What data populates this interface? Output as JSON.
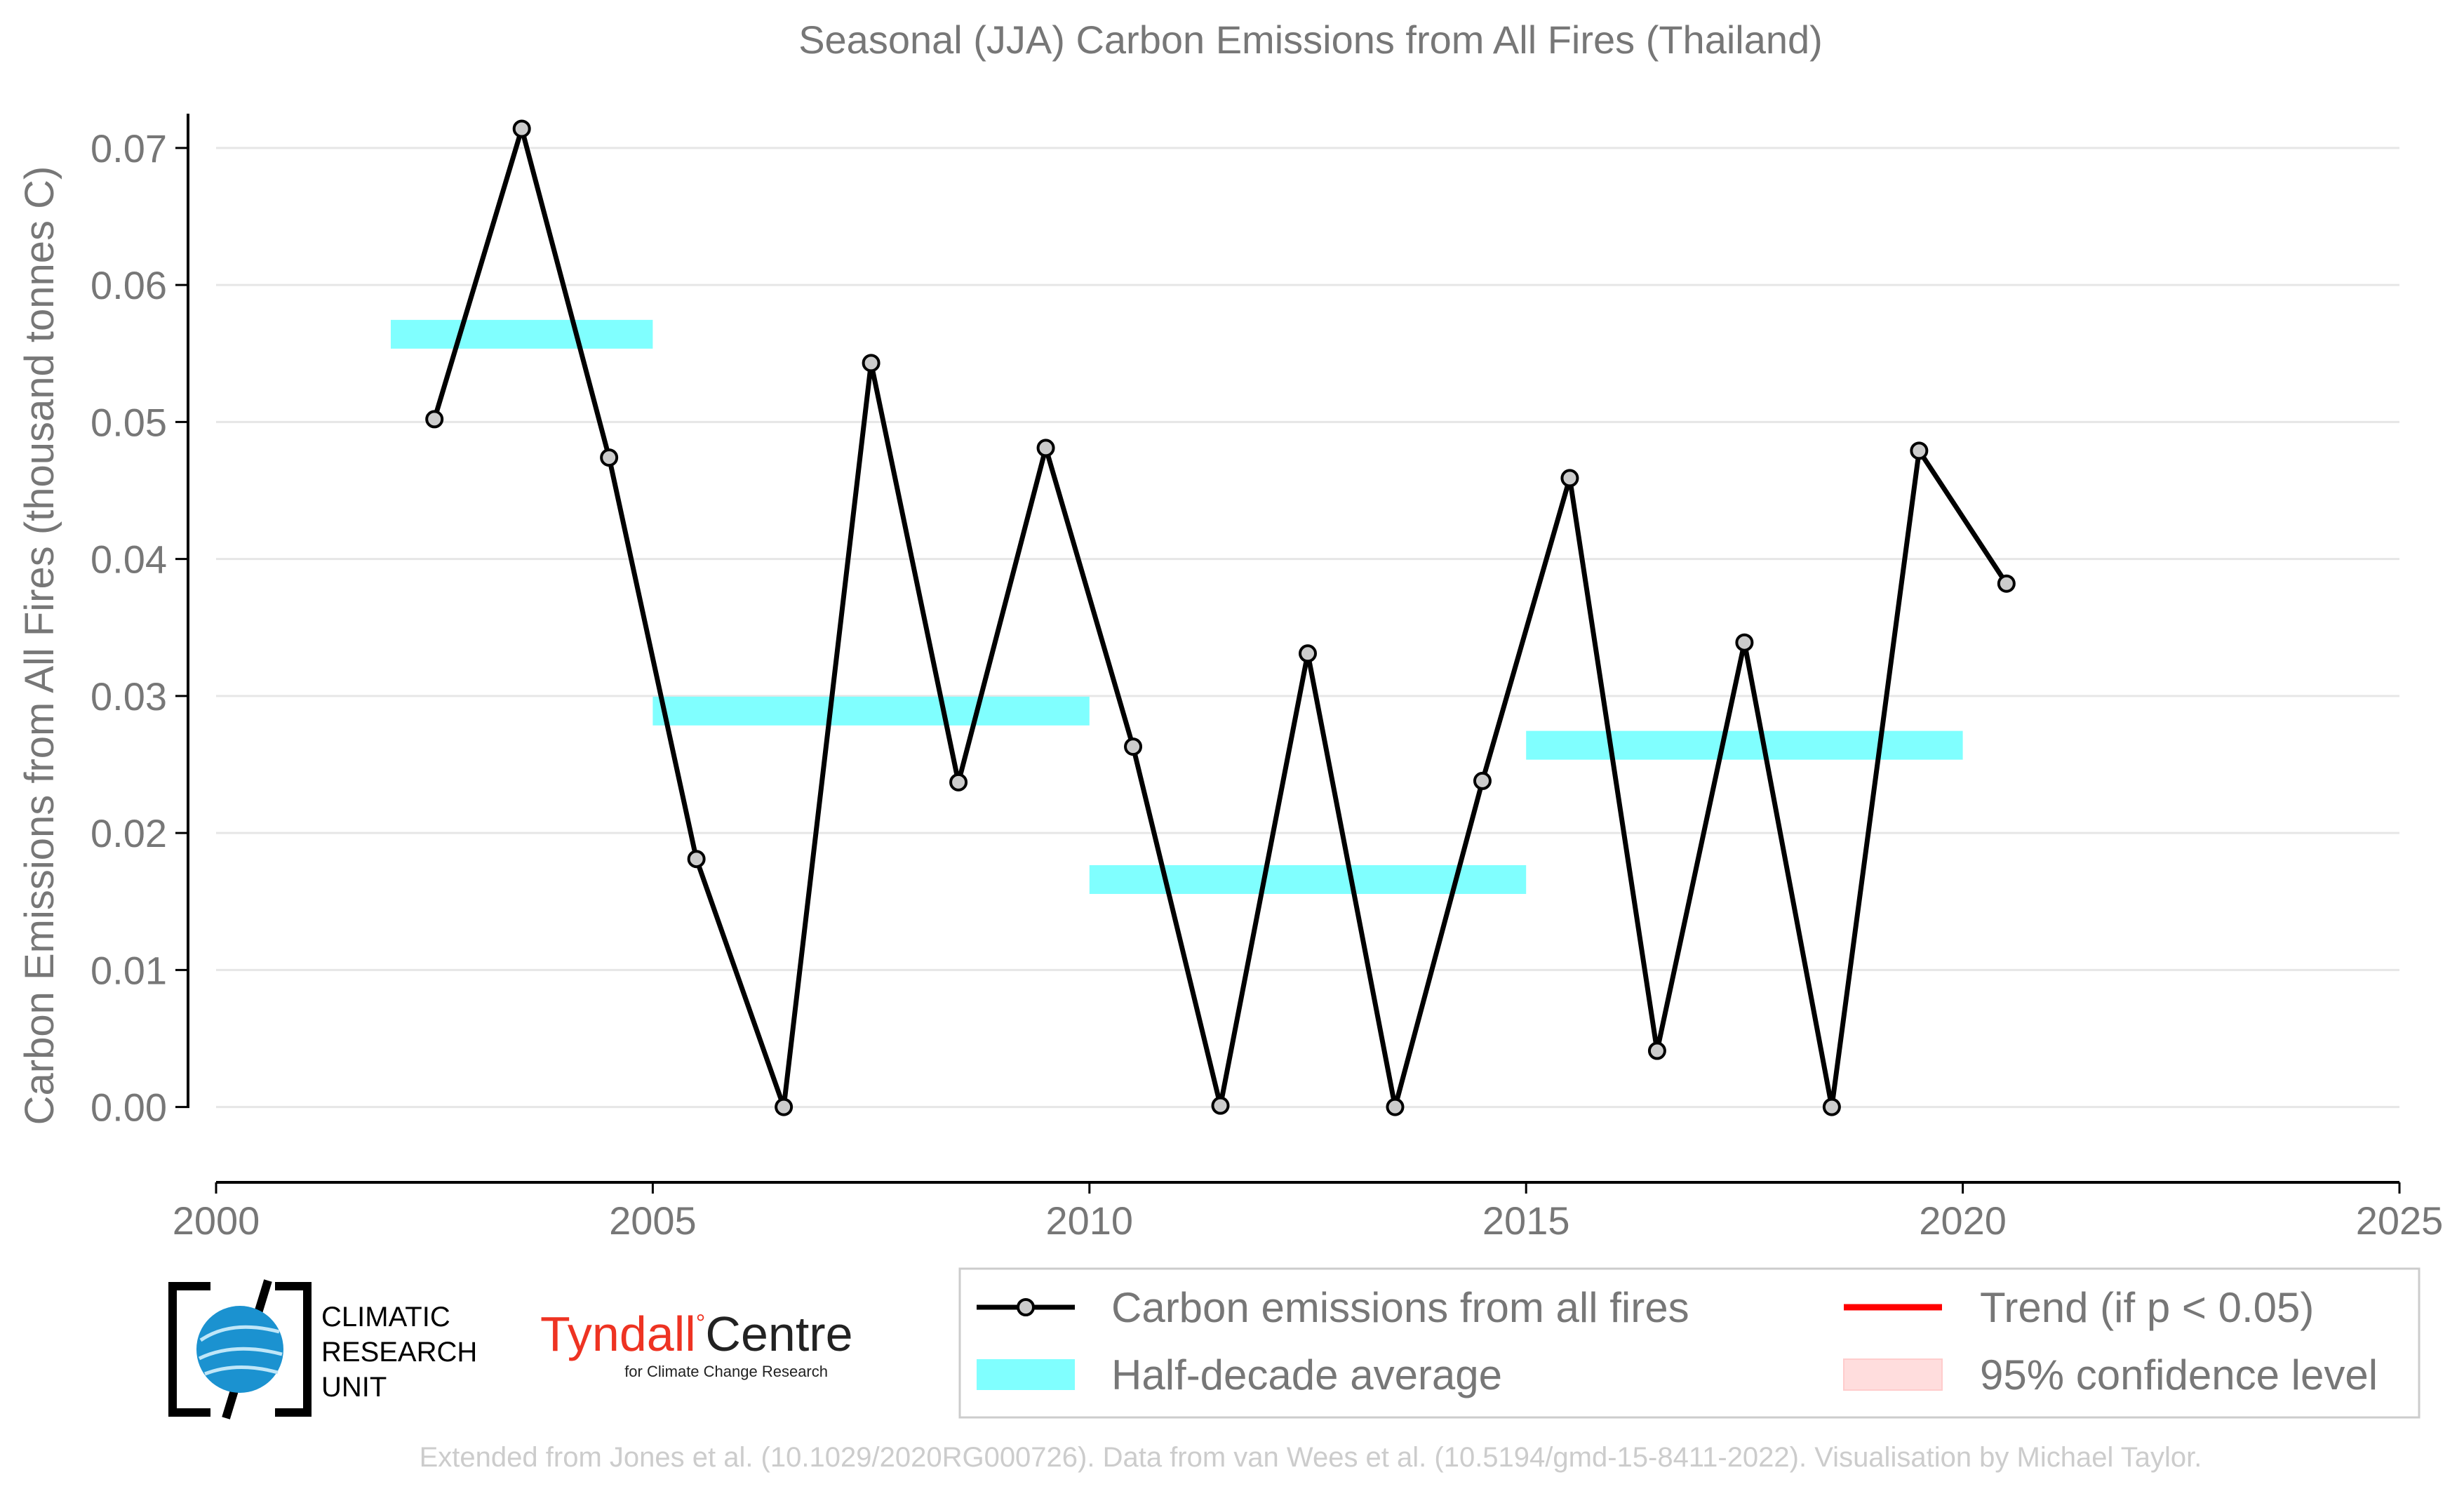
{
  "chart_data": {
    "type": "line",
    "title": "Seasonal (JJA) Carbon Emissions from All Fires (Thailand)",
    "ylabel": "Carbon Emissions from All Fires (thousand tonnes C)",
    "xlabel": "",
    "xlim": [
      2000,
      2025
    ],
    "ylim": [
      -0.0055,
      0.0725
    ],
    "xticks": [
      2000,
      2005,
      2010,
      2015,
      2020,
      2025
    ],
    "xtick_labels": [
      "2000",
      "2005",
      "2010",
      "2015",
      "2020",
      "2025"
    ],
    "yticks": [
      0.0,
      0.01,
      0.02,
      0.03,
      0.04,
      0.05,
      0.06,
      0.07
    ],
    "ytick_labels": [
      "0.00",
      "0.01",
      "0.02",
      "0.03",
      "0.04",
      "0.05",
      "0.06",
      "0.07"
    ],
    "grid": "horizontal",
    "legend_placement": "bottom-right",
    "series": [
      {
        "name": "Carbon emissions from all fires",
        "color": "#000000",
        "x": [
          2002.5,
          2003.5,
          2004.5,
          2005.5,
          2006.5,
          2007.5,
          2008.5,
          2009.5,
          2010.5,
          2011.5,
          2012.5,
          2013.5,
          2014.5,
          2015.5,
          2016.5,
          2017.5,
          2018.5,
          2019.5,
          2020.5
        ],
        "y": [
          0.0502,
          0.0714,
          0.0474,
          0.0181,
          0.0,
          0.0543,
          0.0237,
          0.0481,
          0.0263,
          0.0001,
          0.0331,
          0.0,
          0.0238,
          0.0459,
          0.0041,
          0.0339,
          0.0,
          0.0479,
          0.0382
        ]
      },
      {
        "name": "Half-decade average",
        "color": "#80ffff",
        "segments": [
          {
            "x0": 2002,
            "x1": 2005,
            "y": 0.0564
          },
          {
            "x0": 2005,
            "x1": 2010,
            "y": 0.0289
          },
          {
            "x0": 2010,
            "x1": 2015,
            "y": 0.0166
          },
          {
            "x0": 2015,
            "x1": 2020,
            "y": 0.0264
          }
        ]
      }
    ],
    "legend": [
      {
        "label": "Carbon emissions from all fires",
        "style": "line-marker",
        "color": "#000000"
      },
      {
        "label": "Trend (if p < 0.05)",
        "style": "line",
        "color": "#ff0000"
      },
      {
        "label": "Half-decade average",
        "style": "band",
        "color": "#80ffff"
      },
      {
        "label": "95% confidence level",
        "style": "band",
        "color": "#ffdddd"
      }
    ]
  },
  "logos": {
    "cru_lines": [
      "CLIMATIC",
      "RESEARCH",
      "UNIT"
    ],
    "tyndall_name": "Tyndall",
    "tyndall_centre": "Centre",
    "tyndall_sub": "for Climate Change Research",
    "tyndall_color": "#ee3322"
  },
  "footer": "Extended from Jones et al. (10.1029/2020RG000726). Data from van Wees et al. (10.5194/gmd-15-8411-2022). Visualisation by Michael Taylor."
}
